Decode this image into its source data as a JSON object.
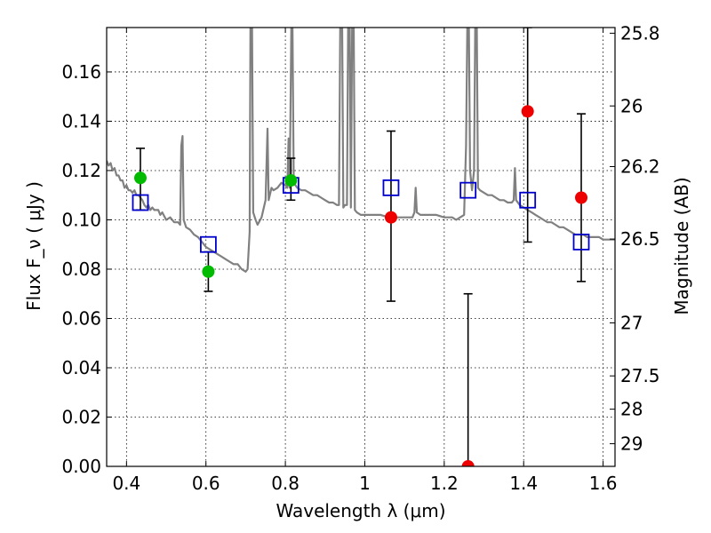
{
  "chart_data": {
    "type": "scatter",
    "xlabel": "Wavelength  λ (μm)",
    "ylabel": "Flux  F_ν  ( μJy )",
    "ylabel_right": "Magnitude (AB)",
    "xlim": [
      0.35,
      1.63
    ],
    "ylim": [
      0.0,
      0.178
    ],
    "x_ticks": [
      0.4,
      0.6,
      0.8,
      1.0,
      1.2,
      1.4,
      1.6
    ],
    "x_tick_labels": [
      "0.4",
      "0.6",
      "0.8",
      "1",
      "1.2",
      "1.4",
      "1.6"
    ],
    "y_ticks": [
      0.0,
      0.02,
      0.04,
      0.06,
      0.08,
      0.1,
      0.12,
      0.14,
      0.16
    ],
    "y_tick_labels": [
      "0.00",
      "0.02",
      "0.04",
      "0.06",
      "0.08",
      "0.10",
      "0.12",
      "0.14",
      "0.16"
    ],
    "right_ticks": [
      {
        "label": "25.8",
        "flux": 0.1757
      },
      {
        "label": "26",
        "flux": 0.1462
      },
      {
        "label": "26.2",
        "flux": 0.1216
      },
      {
        "label": "26.5",
        "flux": 0.0922
      },
      {
        "label": "27",
        "flux": 0.0582
      },
      {
        "label": "27.5",
        "flux": 0.0367
      },
      {
        "label": "28",
        "flux": 0.0232
      },
      {
        "label": "29",
        "flux": 0.0092
      }
    ],
    "grid": true,
    "model_sed": {
      "color": "#808080",
      "points": [
        [
          0.35,
          0.124
        ],
        [
          0.355,
          0.122
        ],
        [
          0.36,
          0.123
        ],
        [
          0.365,
          0.12
        ],
        [
          0.37,
          0.121
        ],
        [
          0.375,
          0.118
        ],
        [
          0.38,
          0.118
        ],
        [
          0.385,
          0.116
        ],
        [
          0.39,
          0.116
        ],
        [
          0.395,
          0.113
        ],
        [
          0.4,
          0.114
        ],
        [
          0.405,
          0.112
        ],
        [
          0.41,
          0.112
        ],
        [
          0.415,
          0.111
        ],
        [
          0.42,
          0.112
        ],
        [
          0.425,
          0.11
        ],
        [
          0.43,
          0.11
        ],
        [
          0.435,
          0.109
        ],
        [
          0.44,
          0.108
        ],
        [
          0.445,
          0.106
        ],
        [
          0.45,
          0.105
        ],
        [
          0.455,
          0.106
        ],
        [
          0.46,
          0.104
        ],
        [
          0.465,
          0.105
        ],
        [
          0.47,
          0.104
        ],
        [
          0.48,
          0.104
        ],
        [
          0.485,
          0.102
        ],
        [
          0.49,
          0.103
        ],
        [
          0.5,
          0.1
        ],
        [
          0.51,
          0.101
        ],
        [
          0.52,
          0.099
        ],
        [
          0.53,
          0.099
        ],
        [
          0.535,
          0.098
        ],
        [
          0.538,
          0.13
        ],
        [
          0.541,
          0.134
        ],
        [
          0.544,
          0.1
        ],
        [
          0.55,
          0.097
        ],
        [
          0.56,
          0.096
        ],
        [
          0.57,
          0.094
        ],
        [
          0.58,
          0.093
        ],
        [
          0.59,
          0.091
        ],
        [
          0.6,
          0.089
        ],
        [
          0.61,
          0.088
        ],
        [
          0.62,
          0.087
        ],
        [
          0.63,
          0.086
        ],
        [
          0.64,
          0.085
        ],
        [
          0.65,
          0.084
        ],
        [
          0.66,
          0.083
        ],
        [
          0.67,
          0.082
        ],
        [
          0.68,
          0.082
        ],
        [
          0.69,
          0.08
        ],
        [
          0.7,
          0.079
        ],
        [
          0.705,
          0.08
        ],
        [
          0.71,
          0.095
        ],
        [
          0.712,
          0.178
        ],
        [
          0.716,
          0.178
        ],
        [
          0.719,
          0.103
        ],
        [
          0.725,
          0.1
        ],
        [
          0.73,
          0.098
        ],
        [
          0.74,
          0.101
        ],
        [
          0.75,
          0.108
        ],
        [
          0.755,
          0.137
        ],
        [
          0.758,
          0.108
        ],
        [
          0.765,
          0.113
        ],
        [
          0.77,
          0.112
        ],
        [
          0.78,
          0.113
        ],
        [
          0.79,
          0.115
        ],
        [
          0.8,
          0.114
        ],
        [
          0.805,
          0.113
        ],
        [
          0.808,
          0.133
        ],
        [
          0.811,
          0.113
        ],
        [
          0.815,
          0.178
        ],
        [
          0.818,
          0.178
        ],
        [
          0.821,
          0.115
        ],
        [
          0.83,
          0.113
        ],
        [
          0.84,
          0.112
        ],
        [
          0.85,
          0.112
        ],
        [
          0.86,
          0.111
        ],
        [
          0.87,
          0.11
        ],
        [
          0.88,
          0.11
        ],
        [
          0.89,
          0.109
        ],
        [
          0.9,
          0.108
        ],
        [
          0.91,
          0.107
        ],
        [
          0.92,
          0.107
        ],
        [
          0.93,
          0.106
        ],
        [
          0.935,
          0.106
        ],
        [
          0.938,
          0.178
        ],
        [
          0.943,
          0.178
        ],
        [
          0.946,
          0.105
        ],
        [
          0.95,
          0.106
        ],
        [
          0.955,
          0.106
        ],
        [
          0.958,
          0.178
        ],
        [
          0.962,
          0.178
        ],
        [
          0.965,
          0.105
        ],
        [
          0.968,
          0.178
        ],
        [
          0.972,
          0.178
        ],
        [
          0.975,
          0.104
        ],
        [
          0.98,
          0.103
        ],
        [
          0.99,
          0.102
        ],
        [
          1.0,
          0.102
        ],
        [
          1.02,
          0.102
        ],
        [
          1.04,
          0.102
        ],
        [
          1.06,
          0.101
        ],
        [
          1.08,
          0.101
        ],
        [
          1.1,
          0.101
        ],
        [
          1.12,
          0.101
        ],
        [
          1.125,
          0.103
        ],
        [
          1.128,
          0.113
        ],
        [
          1.131,
          0.103
        ],
        [
          1.14,
          0.102
        ],
        [
          1.16,
          0.102
        ],
        [
          1.18,
          0.102
        ],
        [
          1.2,
          0.101
        ],
        [
          1.22,
          0.101
        ],
        [
          1.23,
          0.1
        ],
        [
          1.24,
          0.101
        ],
        [
          1.25,
          0.102
        ],
        [
          1.255,
          0.13
        ],
        [
          1.258,
          0.178
        ],
        [
          1.262,
          0.178
        ],
        [
          1.265,
          0.12
        ],
        [
          1.27,
          0.112
        ],
        [
          1.275,
          0.12
        ],
        [
          1.278,
          0.178
        ],
        [
          1.282,
          0.178
        ],
        [
          1.285,
          0.113
        ],
        [
          1.29,
          0.112
        ],
        [
          1.3,
          0.111
        ],
        [
          1.31,
          0.11
        ],
        [
          1.32,
          0.11
        ],
        [
          1.33,
          0.109
        ],
        [
          1.34,
          0.108
        ],
        [
          1.35,
          0.108
        ],
        [
          1.36,
          0.107
        ],
        [
          1.37,
          0.107
        ],
        [
          1.375,
          0.108
        ],
        [
          1.378,
          0.121
        ],
        [
          1.381,
          0.108
        ],
        [
          1.39,
          0.106
        ],
        [
          1.4,
          0.105
        ],
        [
          1.41,
          0.104
        ],
        [
          1.42,
          0.103
        ],
        [
          1.43,
          0.102
        ],
        [
          1.44,
          0.101
        ],
        [
          1.45,
          0.1
        ],
        [
          1.46,
          0.099
        ],
        [
          1.47,
          0.099
        ],
        [
          1.48,
          0.098
        ],
        [
          1.49,
          0.097
        ],
        [
          1.5,
          0.097
        ],
        [
          1.51,
          0.096
        ],
        [
          1.52,
          0.095
        ],
        [
          1.53,
          0.094
        ],
        [
          1.54,
          0.094
        ],
        [
          1.55,
          0.094
        ],
        [
          1.56,
          0.093
        ],
        [
          1.57,
          0.093
        ],
        [
          1.58,
          0.093
        ],
        [
          1.59,
          0.093
        ],
        [
          1.6,
          0.092
        ],
        [
          1.61,
          0.092
        ],
        [
          1.63,
          0.092
        ]
      ]
    },
    "model_photometry": {
      "marker": "open-square",
      "color": "#0000cc",
      "points": [
        {
          "x": 0.435,
          "y": 0.107
        },
        {
          "x": 0.606,
          "y": 0.09
        },
        {
          "x": 0.814,
          "y": 0.114
        },
        {
          "x": 1.066,
          "y": 0.113
        },
        {
          "x": 1.26,
          "y": 0.112
        },
        {
          "x": 1.41,
          "y": 0.108
        },
        {
          "x": 1.545,
          "y": 0.091
        }
      ]
    },
    "observed_photometry": {
      "marker": "filled-circle",
      "points": [
        {
          "x": 0.435,
          "y": 0.117,
          "err_low": 0.104,
          "err_high": 0.129,
          "color": "#00bb00"
        },
        {
          "x": 0.606,
          "y": 0.079,
          "err_low": 0.071,
          "err_high": 0.087,
          "color": "#00bb00"
        },
        {
          "x": 0.814,
          "y": 0.116,
          "err_low": 0.108,
          "err_high": 0.125,
          "color": "#00bb00"
        },
        {
          "x": 1.066,
          "y": 0.101,
          "err_low": 0.067,
          "err_high": 0.136,
          "color": "#ee0000"
        },
        {
          "x": 1.26,
          "y": 0.0,
          "err_low": 0.0,
          "err_high": 0.07,
          "color": "#ee0000"
        },
        {
          "x": 1.41,
          "y": 0.144,
          "err_low": 0.091,
          "err_high": 0.178,
          "color": "#ee0000"
        },
        {
          "x": 1.545,
          "y": 0.109,
          "err_low": 0.075,
          "err_high": 0.143,
          "color": "#ee0000"
        }
      ]
    }
  }
}
